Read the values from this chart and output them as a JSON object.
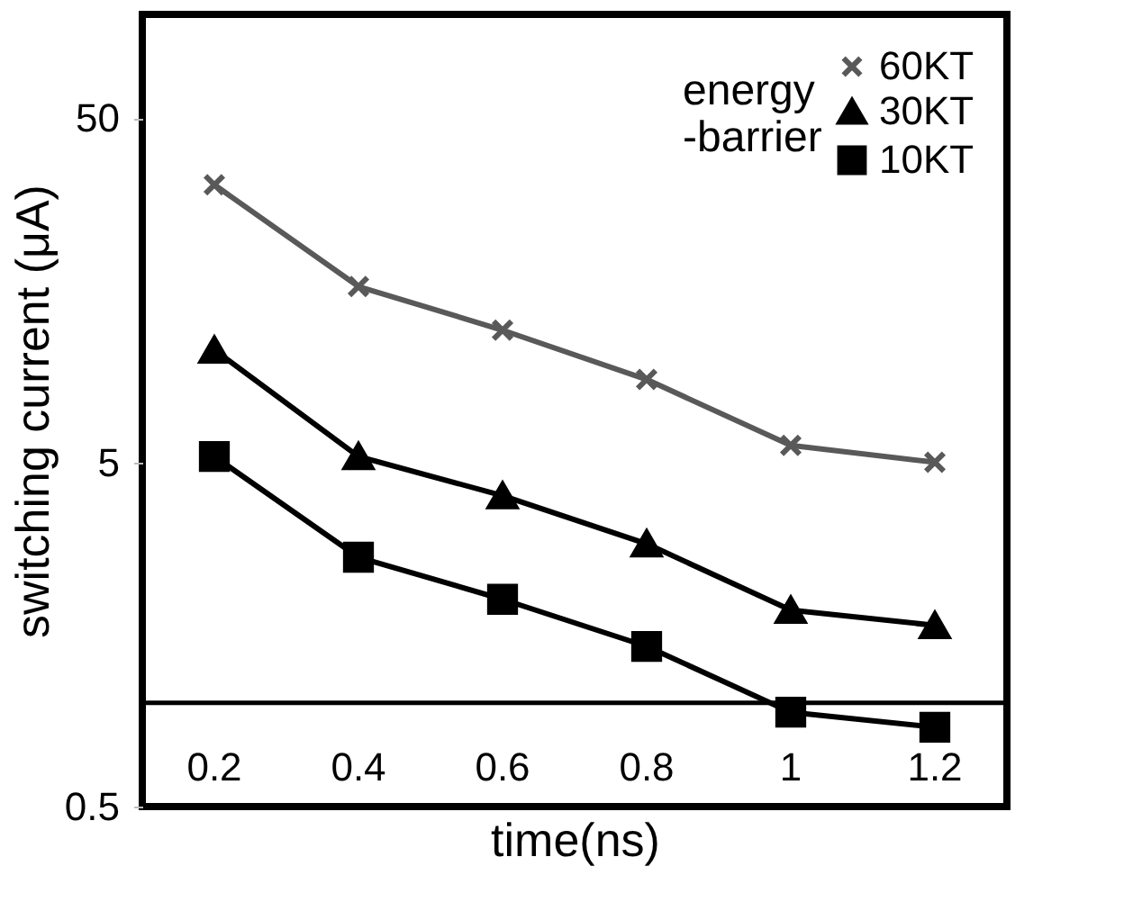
{
  "chart_data": {
    "type": "line",
    "xlabel": "time(ns)",
    "ylabel": "switching current (μA)",
    "legend_title": "energy -barrier",
    "categories": [
      "0.2",
      "0.4",
      "0.6",
      "0.8",
      "1",
      "1.2"
    ],
    "series": [
      {
        "name": "60KT",
        "color": "#595959",
        "marker": "cross",
        "values": [
          32,
          16.2,
          12.1,
          8.7,
          5.6,
          5.0
        ]
      },
      {
        "name": "30KT",
        "color": "#000000",
        "marker": "triangle",
        "values": [
          10.6,
          5.2,
          4.0,
          2.9,
          1.86,
          1.68
        ]
      },
      {
        "name": "10KT",
        "color": "#000000",
        "marker": "square",
        "values": [
          5.2,
          2.65,
          2.0,
          1.46,
          0.94,
          0.85
        ]
      }
    ],
    "log": true,
    "ylim": [
      0.5,
      100
    ],
    "yticks": [
      0.5,
      5,
      50
    ],
    "grid": false,
    "legend": "top right",
    "ref_lines": [
      {
        "axis": "y",
        "value": 1
      }
    ]
  }
}
